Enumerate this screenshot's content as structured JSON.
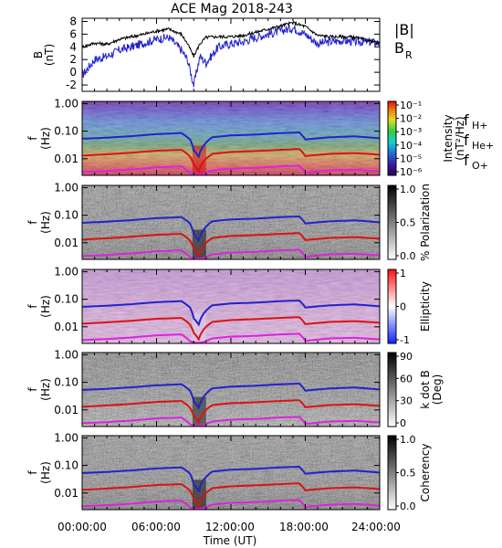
{
  "title": "ACE Mag 2018-243",
  "x_axis": {
    "label": "Time (UT)",
    "ticks": [
      "00:00:00",
      "06:00:00",
      "12:00:00",
      "18:00:00",
      "24:00:00"
    ],
    "range_hours": [
      0,
      24
    ]
  },
  "panels": [
    {
      "id": "bfield",
      "type": "line",
      "ylabel": "B",
      "yunit": "(nT)",
      "yrange": [
        -3,
        8.5
      ],
      "yticks": [
        "8",
        "6",
        "4",
        "2",
        "0",
        "-2"
      ],
      "legend": [
        {
          "text": "|B|",
          "color": "#000000"
        },
        {
          "text": "B",
          "sub": "R",
          "color": "#2222cc"
        }
      ]
    },
    {
      "id": "intensity",
      "type": "heatmap",
      "ylabel": "f",
      "yunit": "(Hz)",
      "yticks": [
        "1.00",
        "0.10",
        "0.01"
      ],
      "colorbar": {
        "label": "Intensity",
        "unit": "(nT²/Hz)",
        "ticks": [
          "10⁻¹",
          "10⁻²",
          "10⁻³",
          "10⁻⁴",
          "10⁻⁵",
          "10⁻⁶"
        ]
      },
      "legend": [
        {
          "text": "f",
          "sub": "H+",
          "color": "#2222cc"
        },
        {
          "text": "f",
          "sub": "He+",
          "color": "#dd1111"
        },
        {
          "text": "f",
          "sub": "O+",
          "color": "#dd22dd"
        }
      ]
    },
    {
      "id": "polarization",
      "type": "heatmap",
      "ylabel": "f",
      "yunit": "(Hz)",
      "yticks": [
        "1.00",
        "0.10",
        "0.01"
      ],
      "colorbar": {
        "label": "% Polarization",
        "unit": "",
        "ticks": [
          "1.0",
          "0.5",
          "0.0"
        ]
      }
    },
    {
      "id": "ellipticity",
      "type": "heatmap",
      "ylabel": "f",
      "yunit": "(Hz)",
      "yticks": [
        "1.00",
        "0.10",
        "0.01"
      ],
      "colorbar": {
        "label": "Ellipticity",
        "unit": "",
        "ticks": [
          "1",
          "0",
          "-1"
        ]
      }
    },
    {
      "id": "kdotb",
      "type": "heatmap",
      "ylabel": "f",
      "yunit": "(Hz)",
      "yticks": [
        "1.00",
        "0.10",
        "0.01"
      ],
      "colorbar": {
        "label": "k dot B",
        "unit": "(Deg)",
        "ticks": [
          "90",
          "60",
          "30",
          "0"
        ]
      }
    },
    {
      "id": "coherency",
      "type": "heatmap",
      "ylabel": "f",
      "yunit": "(Hz)",
      "yticks": [
        "1.00",
        "0.10",
        "0.01"
      ],
      "colorbar": {
        "label": "Coherency",
        "unit": "",
        "ticks": [
          "1.0",
          "0.5",
          "0.0"
        ]
      }
    }
  ],
  "chart_data": [
    {
      "type": "line",
      "title": "ACE Mag 2018-243",
      "xlabel": "Time (UT)",
      "ylabel": "B (nT)",
      "xlim": [
        0,
        24
      ],
      "ylim": [
        -3,
        8.5
      ],
      "x": [
        0,
        1,
        2,
        3,
        4,
        5,
        6,
        7,
        8,
        8.5,
        9,
        9.5,
        10,
        11,
        12,
        13,
        14,
        15,
        16,
        17,
        18,
        19,
        20,
        21,
        22,
        23,
        24
      ],
      "series": [
        {
          "name": "|B|",
          "color": "#000000",
          "values": [
            4.0,
            4.6,
            4.4,
            5.2,
            5.6,
            6.0,
            6.5,
            6.8,
            6.0,
            4.5,
            2.5,
            4.5,
            5.5,
            5.6,
            5.6,
            5.8,
            6.3,
            6.8,
            7.3,
            7.8,
            7.2,
            5.8,
            5.6,
            5.6,
            5.5,
            5.0,
            4.6
          ]
        },
        {
          "name": "BR",
          "color": "#2222cc",
          "values": [
            -0.5,
            2.0,
            2.5,
            3.5,
            4.0,
            4.6,
            5.2,
            5.5,
            3.5,
            2.0,
            -2.0,
            2.5,
            1.5,
            4.0,
            4.5,
            4.8,
            5.5,
            6.0,
            6.5,
            7.0,
            6.0,
            4.5,
            4.8,
            5.0,
            4.8,
            4.8,
            4.6
          ]
        }
      ]
    },
    {
      "type": "line",
      "ylabel": "f (Hz)",
      "yscale": "log",
      "ylim": [
        0.0025,
        1.2
      ],
      "x": [
        0,
        2,
        4,
        6,
        8,
        8.7,
        9,
        9.4,
        9.8,
        10.5,
        12,
        14,
        16,
        17.5,
        18,
        20,
        22,
        24
      ],
      "series": [
        {
          "name": "fH+",
          "color": "#2222cc",
          "values": [
            0.053,
            0.058,
            0.066,
            0.078,
            0.085,
            0.05,
            0.02,
            0.012,
            0.03,
            0.06,
            0.07,
            0.075,
            0.085,
            0.09,
            0.05,
            0.06,
            0.065,
            0.055
          ]
        },
        {
          "name": "fHe+",
          "color": "#dd1111",
          "values": [
            0.013,
            0.0145,
            0.0165,
            0.0195,
            0.021,
            0.012,
            0.006,
            0.0035,
            0.008,
            0.015,
            0.0175,
            0.019,
            0.021,
            0.0225,
            0.0125,
            0.015,
            0.016,
            0.014
          ]
        },
        {
          "name": "fO+",
          "color": "#dd22dd",
          "values": [
            0.0033,
            0.0036,
            0.0041,
            0.0049,
            0.0053,
            0.003,
            0.0027,
            0.0026,
            0.0028,
            0.0038,
            0.0044,
            0.0047,
            0.0053,
            0.0056,
            0.0031,
            0.0038,
            0.004,
            0.0035
          ]
        }
      ]
    }
  ]
}
